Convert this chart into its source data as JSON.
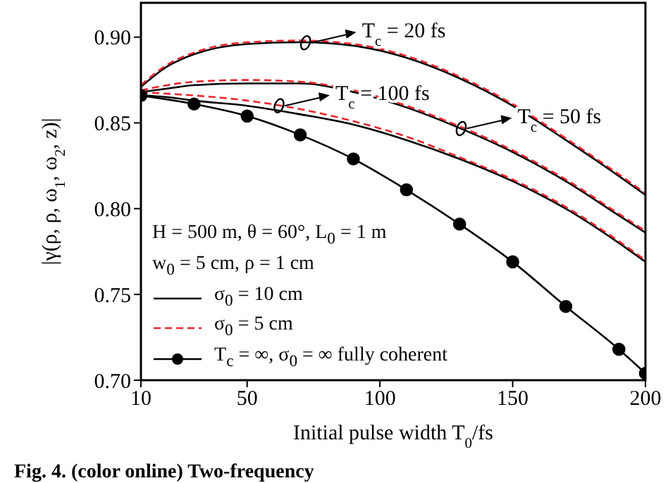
{
  "chart_data": {
    "type": "line",
    "xlabel": "Initial pulse width  T$_{0}$/fs",
    "ylabel": "|γ(ρ, ρ, ω$_{1}$, ω$_{2}$, z)|",
    "x": [
      10,
      20,
      30,
      50,
      70,
      90,
      110,
      130,
      150,
      170,
      190,
      200
    ],
    "series": [
      {
        "color": "#000000",
        "line_style": "solid",
        "marker": "none",
        "values": [
          0.871,
          0.883,
          0.89,
          0.896,
          0.897,
          0.895,
          0.888,
          0.876,
          0.86,
          0.84,
          0.819,
          0.808
        ]
      },
      {
        "color": "#e8242b",
        "line_style": "dashed",
        "marker": "none",
        "values": [
          0.872,
          0.884,
          0.891,
          0.897,
          0.898,
          0.896,
          0.889,
          0.877,
          0.861,
          0.841,
          0.82,
          0.809
        ]
      },
      {
        "color": "#000000",
        "line_style": "solid",
        "marker": "none",
        "values": [
          0.868,
          0.87,
          0.872,
          0.873,
          0.873,
          0.868,
          0.859,
          0.847,
          0.833,
          0.816,
          0.796,
          0.786
        ]
      },
      {
        "color": "#e8242b",
        "line_style": "dashed",
        "marker": "none",
        "values": [
          0.869,
          0.872,
          0.874,
          0.875,
          0.874,
          0.869,
          0.86,
          0.848,
          0.834,
          0.817,
          0.797,
          0.787
        ]
      },
      {
        "name": "σ$_{0}$ = 10 cm",
        "color": "#000000",
        "line_style": "solid",
        "marker": "none",
        "values": [
          0.866,
          0.865,
          0.863,
          0.86,
          0.855,
          0.849,
          0.84,
          0.829,
          0.816,
          0.8,
          0.78,
          0.769
        ]
      },
      {
        "name": "σ$_{0}$ = 5 cm",
        "color": "#e8242b",
        "line_style": "dashed",
        "marker": "none",
        "values": [
          0.868,
          0.867,
          0.866,
          0.863,
          0.858,
          0.851,
          0.842,
          0.83,
          0.817,
          0.801,
          0.781,
          0.77
        ]
      },
      {
        "name": "T$_{c}$ = ∞, σ$_{0}$ = ∞ fully coherent",
        "color": "#000000",
        "line_style": "solid",
        "marker": "circle",
        "x": [
          10,
          30,
          50,
          70,
          90,
          110,
          130,
          150,
          170,
          190,
          200
        ],
        "values": [
          0.866,
          0.861,
          0.854,
          0.843,
          0.829,
          0.811,
          0.791,
          0.769,
          0.743,
          0.718,
          0.704
        ]
      }
    ],
    "xlim": [
      10,
      200
    ],
    "xticks": [
      10,
      50,
      100,
      150,
      200
    ],
    "ylim": [
      0.7,
      0.92
    ],
    "yticks": [
      {
        "value": 0.7,
        "label": "0.70"
      },
      0.75,
      {
        "value": 0.8,
        "label": "0.80"
      },
      0.85,
      {
        "value": 0.9,
        "label": "0.90"
      }
    ],
    "grid": false,
    "legend": "bottom left",
    "annotations": [
      {
        "text": "T$_{c}$ = 20 fs",
        "x": 72,
        "y": 0.8967
      },
      {
        "text": "T$_{c}$ = 100 fs",
        "x": 62,
        "y": 0.86
      },
      {
        "text": "T$_{c}$ = 50 fs",
        "x": 130.6,
        "y": 0.8467
      },
      "H = 500 m, θ = 60°, L$_{0}$ = 1 m",
      "w$_{0}$ = 5 cm, ρ = 1 cm",
      "Fig. 4. (color online) Two-frequency"
    ]
  }
}
